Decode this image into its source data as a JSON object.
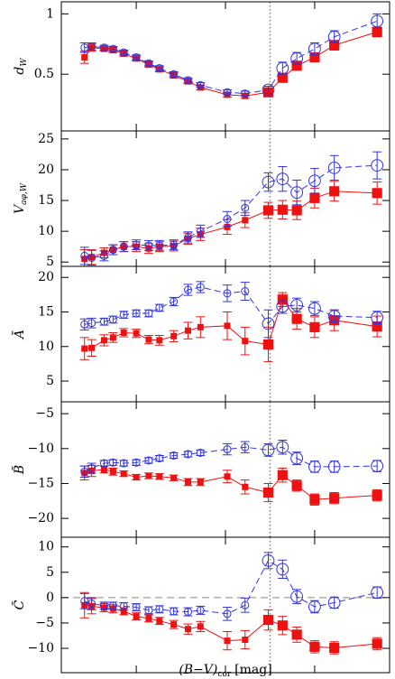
{
  "chart_data": [
    {
      "type": "errorbar",
      "ylabel": "d",
      "ylabel_sub": "W",
      "x": [
        -0.29,
        -0.25,
        -0.18,
        -0.13,
        -0.07,
        0,
        0.07,
        0.13,
        0.21,
        0.29,
        0.36,
        0.51,
        0.61,
        0.74,
        0.82,
        0.9,
        1.0,
        1.11,
        1.35
      ],
      "xlim": [
        -0.42,
        1.42
      ],
      "xticks": [
        0,
        0.5,
        1
      ],
      "ylim": [
        0.03,
        1.1
      ],
      "yticks": [
        0.5,
        1
      ],
      "vline": 0.75,
      "series": [
        {
          "color": "#ee1111",
          "marker": "square",
          "linestyle": "solid",
          "values": [
            0.64,
            0.72,
            0.71,
            0.7,
            0.67,
            0.63,
            0.58,
            0.54,
            0.49,
            0.44,
            0.39,
            0.33,
            0.32,
            0.35,
            0.47,
            0.57,
            0.64,
            0.74,
            0.85
          ],
          "errors": [
            0.05,
            0.03,
            0.02,
            0.02,
            0.02,
            0.02,
            0.02,
            0.02,
            0.02,
            0.02,
            0.02,
            0.02,
            0.02,
            0.03,
            0.03,
            0.03,
            0.03,
            0.04,
            0.04
          ]
        },
        {
          "color": "#3333dd",
          "marker": "circle",
          "linestyle": "dashed",
          "values": [
            0.72,
            0.73,
            0.72,
            0.71,
            0.68,
            0.64,
            0.59,
            0.55,
            0.5,
            0.45,
            0.41,
            0.35,
            0.34,
            0.37,
            0.55,
            0.63,
            0.71,
            0.81,
            0.94
          ],
          "errors": [
            0.04,
            0.03,
            0.02,
            0.02,
            0.02,
            0.02,
            0.02,
            0.02,
            0.02,
            0.02,
            0.02,
            0.02,
            0.02,
            0.03,
            0.05,
            0.05,
            0.05,
            0.05,
            0.06
          ]
        }
      ]
    },
    {
      "type": "errorbar",
      "ylabel": "V",
      "ylabel_sub": "aφ,W",
      "x": [
        -0.29,
        -0.25,
        -0.18,
        -0.13,
        -0.07,
        0,
        0.07,
        0.13,
        0.21,
        0.29,
        0.36,
        0.51,
        0.61,
        0.74,
        0.82,
        0.9,
        1.0,
        1.11,
        1.35
      ],
      "xlim": [
        -0.42,
        1.42
      ],
      "xticks": [
        0,
        0.5,
        1
      ],
      "ylim": [
        4.3,
        26.3
      ],
      "yticks": [
        5,
        10,
        15,
        20,
        25
      ],
      "vline": 0.75,
      "series": [
        {
          "color": "#ee1111",
          "marker": "square",
          "linestyle": "solid",
          "values": [
            5.5,
            5.8,
            6.5,
            7.0,
            7.5,
            7.5,
            7.2,
            7.5,
            7.6,
            8.8,
            9.5,
            10.7,
            11.8,
            13.4,
            13.5,
            13.4,
            15.4,
            16.5,
            16.2
          ],
          "errors": [
            1.5,
            1.2,
            0.8,
            0.8,
            0.8,
            0.8,
            0.8,
            0.8,
            0.8,
            0.9,
            1.0,
            1.2,
            1.2,
            1.3,
            1.5,
            1.5,
            1.6,
            1.6,
            1.8
          ]
        },
        {
          "color": "#3333dd",
          "marker": "circle",
          "linestyle": "dashed",
          "values": [
            6.0,
            5.7,
            6.0,
            7.0,
            7.5,
            7.8,
            7.7,
            7.7,
            7.8,
            9.0,
            10.0,
            12.0,
            13.8,
            18.0,
            18.5,
            16.3,
            18.2,
            20.3,
            20.7
          ],
          "errors": [
            1.4,
            1.2,
            0.8,
            0.8,
            0.8,
            0.8,
            0.8,
            0.8,
            0.8,
            0.9,
            1.0,
            1.2,
            1.2,
            1.5,
            2.0,
            2.0,
            2.0,
            2.0,
            2.2
          ]
        }
      ]
    },
    {
      "type": "errorbar",
      "ylabel": "Ã",
      "x": [
        -0.29,
        -0.25,
        -0.18,
        -0.13,
        -0.07,
        0,
        0.07,
        0.13,
        0.21,
        0.29,
        0.36,
        0.51,
        0.61,
        0.74,
        0.82,
        0.9,
        1.0,
        1.11,
        1.35
      ],
      "xlim": [
        -0.42,
        1.42
      ],
      "xticks": [
        0,
        0.5,
        1
      ],
      "ylim": [
        2.0,
        21.6
      ],
      "yticks": [
        5,
        10,
        15,
        20
      ],
      "vline": 0.75,
      "series": [
        {
          "color": "#ee1111",
          "marker": "square",
          "linestyle": "solid",
          "values": [
            9.7,
            9.8,
            10.9,
            11.3,
            12.0,
            11.9,
            11.0,
            10.9,
            11.5,
            12.3,
            12.8,
            13.0,
            10.8,
            10.3,
            16.8,
            14.0,
            12.8,
            13.8,
            12.9
          ],
          "errors": [
            1.6,
            1.2,
            0.8,
            0.7,
            0.6,
            0.6,
            0.6,
            0.7,
            0.8,
            1.2,
            1.5,
            2.0,
            2.0,
            2.5,
            1.0,
            1.5,
            1.5,
            1.5,
            1.5
          ]
        },
        {
          "color": "#3333dd",
          "marker": "circle",
          "linestyle": "dashed",
          "values": [
            13.2,
            13.4,
            13.6,
            13.9,
            14.6,
            14.8,
            14.8,
            15.6,
            16.5,
            18.2,
            18.6,
            17.7,
            18.0,
            13.3,
            15.8,
            16.0,
            15.5,
            14.4,
            14.2
          ],
          "errors": [
            0.8,
            0.7,
            0.5,
            0.5,
            0.5,
            0.5,
            0.5,
            0.5,
            0.6,
            0.8,
            0.8,
            1.2,
            1.3,
            2.0,
            1.0,
            1.0,
            1.0,
            0.9,
            0.9
          ]
        }
      ]
    },
    {
      "type": "errorbar",
      "ylabel": "B̃",
      "x": [
        -0.29,
        -0.25,
        -0.18,
        -0.13,
        -0.07,
        0,
        0.07,
        0.13,
        0.21,
        0.29,
        0.36,
        0.51,
        0.61,
        0.74,
        0.82,
        0.9,
        1.0,
        1.11,
        1.35
      ],
      "xlim": [
        -0.42,
        1.42
      ],
      "xticks": [
        0,
        0.5,
        1
      ],
      "ylim": [
        -22.7,
        -3.3
      ],
      "yticks": [
        {
          "value": -20,
          "label": "−20"
        },
        {
          "value": -15,
          "label": "−15"
        },
        {
          "value": -10,
          "label": "−10"
        },
        {
          "value": -5,
          "label": "−5"
        }
      ],
      "vline": 0.75,
      "series": [
        {
          "color": "#ee1111",
          "marker": "square",
          "linestyle": "solid",
          "values": [
            -13.5,
            -13.2,
            -13.0,
            -13.3,
            -13.6,
            -14.1,
            -13.9,
            -14.0,
            -14.2,
            -14.8,
            -14.8,
            -14.0,
            -15.5,
            -16.3,
            -13.8,
            -15.3,
            -17.3,
            -17.1,
            -16.7
          ],
          "errors": [
            1.0,
            0.8,
            0.5,
            0.5,
            0.4,
            0.4,
            0.4,
            0.4,
            0.4,
            0.5,
            0.5,
            0.9,
            1.0,
            1.3,
            1.0,
            0.8,
            0.8,
            0.8,
            0.8
          ]
        },
        {
          "color": "#3333dd",
          "marker": "circle",
          "linestyle": "dashed",
          "values": [
            -13.3,
            -12.8,
            -12.1,
            -12.0,
            -12.1,
            -12.0,
            -11.7,
            -11.4,
            -11.0,
            -10.8,
            -10.6,
            -10.1,
            -9.8,
            -10.2,
            -9.8,
            -11.4,
            -12.6,
            -12.6,
            -12.5
          ],
          "errors": [
            0.8,
            0.7,
            0.4,
            0.4,
            0.4,
            0.4,
            0.4,
            0.4,
            0.4,
            0.4,
            0.4,
            0.8,
            0.8,
            0.9,
            1.0,
            0.9,
            0.8,
            0.8,
            0.8
          ]
        }
      ]
    },
    {
      "type": "errorbar",
      "ylabel": "C̃",
      "xlabel": "(B−V)",
      "xlabel_sub": "cor",
      "xlabel_unit": "[mag]",
      "x": [
        -0.29,
        -0.25,
        -0.18,
        -0.13,
        -0.07,
        0,
        0.07,
        0.13,
        0.21,
        0.29,
        0.36,
        0.51,
        0.61,
        0.74,
        0.82,
        0.9,
        1.0,
        1.11,
        1.35
      ],
      "xlim": [
        -0.42,
        1.42
      ],
      "xticks": [
        0,
        0.5,
        1
      ],
      "ylim": [
        -14.8,
        11.9
      ],
      "yticks": [
        {
          "value": -10,
          "label": "−10"
        },
        {
          "value": -5,
          "label": "−5"
        },
        0,
        5,
        10
      ],
      "vline": 0.75,
      "hline": 0,
      "series": [
        {
          "color": "#ee1111",
          "marker": "square",
          "linestyle": "solid",
          "values": [
            -1.5,
            -1.7,
            -2.0,
            -2.2,
            -2.7,
            -3.7,
            -4.1,
            -4.6,
            -5.3,
            -6.2,
            -5.7,
            -8.5,
            -8.3,
            -4.4,
            -5.5,
            -7.3,
            -9.7,
            -9.9,
            -9.1
          ],
          "errors": [
            2.5,
            1.5,
            0.8,
            0.8,
            0.7,
            0.7,
            0.7,
            0.7,
            0.8,
            1.0,
            1.0,
            1.8,
            1.8,
            2.0,
            1.8,
            1.5,
            1.2,
            1.2,
            1.2
          ]
        },
        {
          "color": "#3333dd",
          "marker": "circle",
          "linestyle": "dashed",
          "values": [
            -0.7,
            -1.2,
            -1.6,
            -1.6,
            -1.7,
            -1.9,
            -2.5,
            -2.3,
            -2.7,
            -2.8,
            -2.5,
            -3.2,
            -1.5,
            7.3,
            5.6,
            0.2,
            -1.8,
            -1.0,
            1.0
          ],
          "errors": [
            1.5,
            1.2,
            0.7,
            0.7,
            0.7,
            0.7,
            0.7,
            0.7,
            0.7,
            0.8,
            0.8,
            1.3,
            1.4,
            1.6,
            1.8,
            1.4,
            1.2,
            1.1,
            1.1
          ]
        }
      ]
    }
  ]
}
